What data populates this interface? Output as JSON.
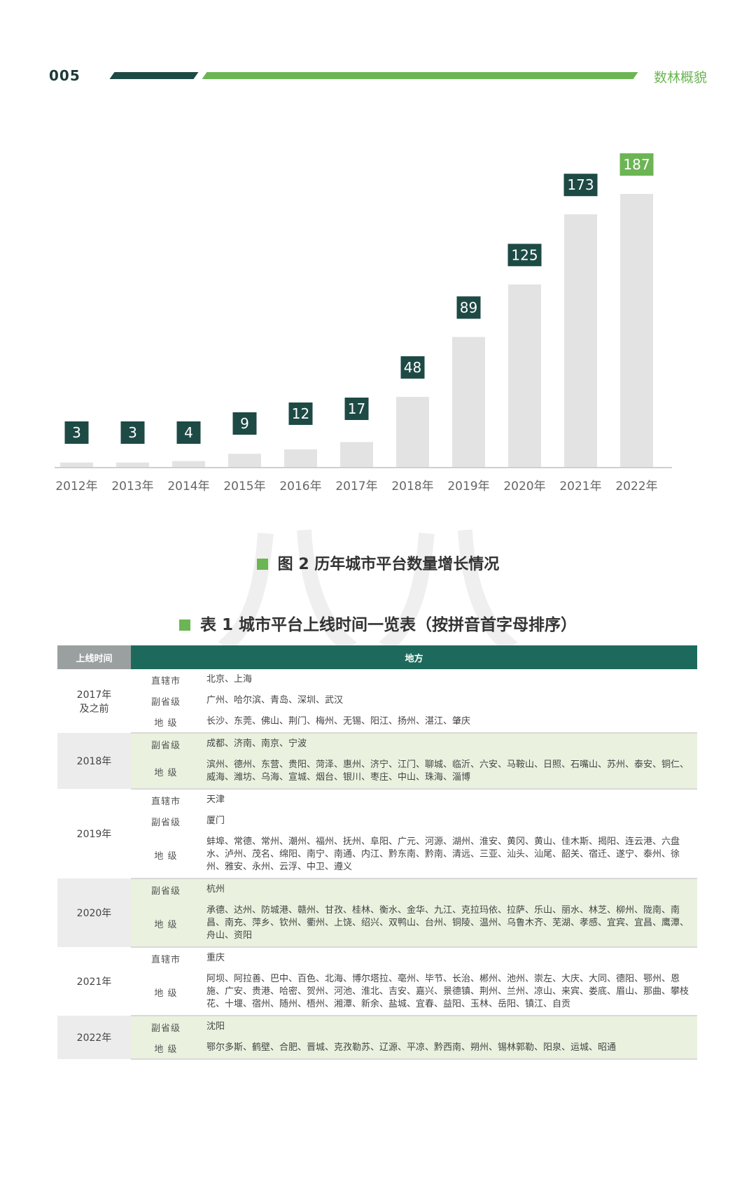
{
  "header": {
    "page_number": "005",
    "section": "数林概貌"
  },
  "figure": {
    "caption": "图 2  历年城市平台数量增长情况"
  },
  "chart_data": {
    "type": "bar",
    "categories": [
      "2012年",
      "2013年",
      "2014年",
      "2015年",
      "2016年",
      "2017年",
      "2018年",
      "2019年",
      "2020年",
      "2021年",
      "2022年"
    ],
    "values": [
      3,
      3,
      4,
      9,
      12,
      17,
      48,
      89,
      125,
      173,
      187
    ],
    "title": "",
    "xlabel": "",
    "ylabel": "",
    "ylim": [
      0,
      187
    ],
    "grid": false,
    "label_color_default": "#1d4a45",
    "label_color_highlight": "#6cb554",
    "bar_color": "#e3e3e3"
  },
  "table": {
    "caption": "表 1  城市平台上线时间一览表（按拼音首字母排序）",
    "header_year": "上线时间",
    "header_place": "地方",
    "groups": [
      {
        "year": "2017年\n及之前",
        "rows": [
          {
            "level": "直辖市",
            "cities": "北京、上海"
          },
          {
            "level": "副省级",
            "cities": "广州、哈尔滨、青岛、深圳、武汉"
          },
          {
            "level": "地  级",
            "cities": "长沙、东莞、佛山、荆门、梅州、无锡、阳江、扬州、湛江、肇庆"
          }
        ]
      },
      {
        "year": "2018年",
        "rows": [
          {
            "level": "副省级",
            "cities": "成都、济南、南京、宁波"
          },
          {
            "level": "地  级",
            "cities": "滨州、德州、东营、贵阳、菏泽、惠州、济宁、江门、聊城、临沂、六安、马鞍山、日照、石嘴山、苏州、泰安、铜仁、威海、潍坊、乌海、宣城、烟台、银川、枣庄、中山、珠海、淄博"
          }
        ]
      },
      {
        "year": "2019年",
        "rows": [
          {
            "level": "直辖市",
            "cities": "天津"
          },
          {
            "level": "副省级",
            "cities": "厦门"
          },
          {
            "level": "地  级",
            "cities": "蚌埠、常德、常州、潮州、福州、抚州、阜阳、广元、河源、湖州、淮安、黄冈、黄山、佳木斯、揭阳、连云港、六盘水、泸州、茂名、绵阳、南宁、南通、内江、黔东南、黔南、清远、三亚、汕头、汕尾、韶关、宿迁、遂宁、泰州、徐州、雅安、永州、云浮、中卫、遵义"
          }
        ]
      },
      {
        "year": "2020年",
        "rows": [
          {
            "level": "副省级",
            "cities": "杭州"
          },
          {
            "level": "地  级",
            "cities": "承德、达州、防城港、赣州、甘孜、桂林、衡水、金华、九江、克拉玛依、拉萨、乐山、丽水、林芝、柳州、陇南、南昌、南充、萍乡、钦州、衢州、上饶、绍兴、双鸭山、台州、铜陵、温州、乌鲁木齐、芜湖、孝感、宜宾、宜昌、鹰潭、舟山、资阳"
          }
        ]
      },
      {
        "year": "2021年",
        "rows": [
          {
            "level": "直辖市",
            "cities": "重庆"
          },
          {
            "level": "地  级",
            "cities": "阿坝、阿拉善、巴中、百色、北海、博尔塔拉、亳州、毕节、长治、郴州、池州、崇左、大庆、大同、德阳、鄂州、恩施、广安、贵港、哈密、贺州、河池、淮北、吉安、嘉兴、景德镇、荆州、兰州、凉山、来宾、娄底、眉山、那曲、攀枝花、十堰、宿州、随州、梧州、湘潭、新余、盐城、宜春、益阳、玉林、岳阳、镇江、自贡"
          }
        ]
      },
      {
        "year": "2022年",
        "rows": [
          {
            "level": "副省级",
            "cities": "沈阳"
          },
          {
            "level": "地  级",
            "cities": "鄂尔多斯、鹤壁、合肥、晋城、克孜勒苏、辽源、平凉、黔西南、朔州、锡林郭勒、阳泉、运城、昭通"
          }
        ]
      }
    ]
  }
}
